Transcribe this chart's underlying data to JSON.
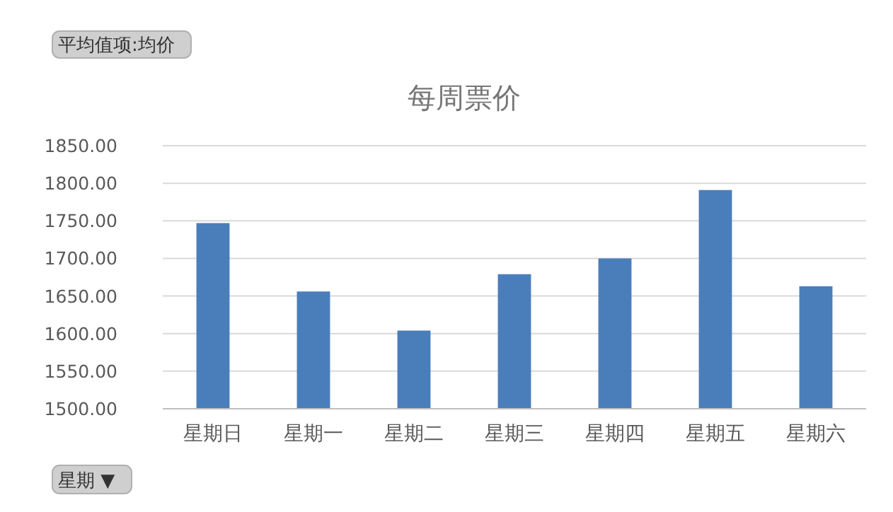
{
  "chart_data": {
    "type": "bar",
    "title": "每周票价",
    "categories": [
      "星期日",
      "星期一",
      "星期二",
      "星期三",
      "星期四",
      "星期五",
      "星期六"
    ],
    "values": [
      1747,
      1656,
      1604,
      1679,
      1700,
      1791,
      1663
    ],
    "color": "#4a7ebb",
    "ylim": [
      1500,
      1850
    ],
    "yticks": [
      {
        "value": 1500,
        "label": "1500.00"
      },
      {
        "value": 1550,
        "label": "1550.00"
      },
      {
        "value": 1600,
        "label": "1600.00"
      },
      {
        "value": 1650,
        "label": "1650.00"
      },
      {
        "value": 1700,
        "label": "1700.00"
      },
      {
        "value": 1750,
        "label": "1750.00"
      },
      {
        "value": 1800,
        "label": "1800.00"
      },
      {
        "value": 1850,
        "label": "1850.00"
      }
    ],
    "grid": "y",
    "annotations": [
      "平均值项:均价",
      "星期 ▼"
    ]
  }
}
